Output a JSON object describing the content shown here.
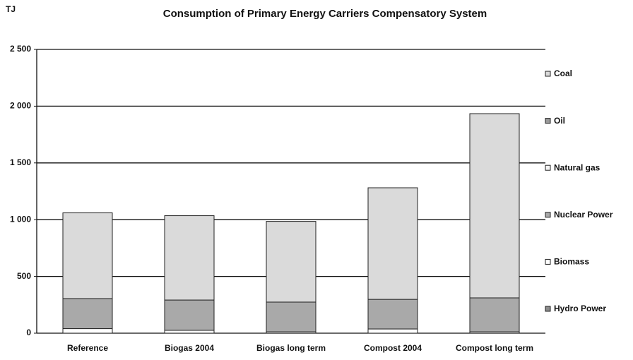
{
  "chart_data": {
    "type": "bar",
    "stacked": true,
    "title": "Consumption of Primary Energy Carriers Compensatory System",
    "y_label": "TJ",
    "categories": [
      "Reference",
      "Biogas 2004",
      "Biogas long term",
      "Compost 2004",
      "Compost long term"
    ],
    "series": [
      {
        "name": "Hydro Power",
        "color": "#8c8c8c",
        "values": [
          0,
          0,
          0,
          0,
          0
        ]
      },
      {
        "name": "Biomass",
        "color": "#ffffff",
        "values": [
          40,
          25,
          12,
          37,
          12
        ]
      },
      {
        "name": "Nuclear Power",
        "color": "#a9a9a9",
        "values": [
          265,
          267,
          262,
          261,
          299
        ]
      },
      {
        "name": "Natural gas",
        "color": "#f4f4f4",
        "values": [
          0,
          0,
          0,
          0,
          0
        ]
      },
      {
        "name": "Oil",
        "color": "#9a9a9a",
        "values": [
          0,
          0,
          0,
          0,
          0
        ]
      },
      {
        "name": "Coal",
        "color": "#dadada",
        "values": [
          755,
          743,
          711,
          983,
          1623
        ]
      }
    ],
    "ylim": [
      0,
      2500
    ],
    "yticks": [
      0,
      500,
      {
        "value": 1000,
        "label": "1 000"
      },
      {
        "value": 1500,
        "label": "1 500"
      },
      {
        "value": 2000,
        "label": "2 000"
      },
      {
        "value": 2500,
        "label": "2 500"
      }
    ],
    "grid": true,
    "legend": "right"
  }
}
